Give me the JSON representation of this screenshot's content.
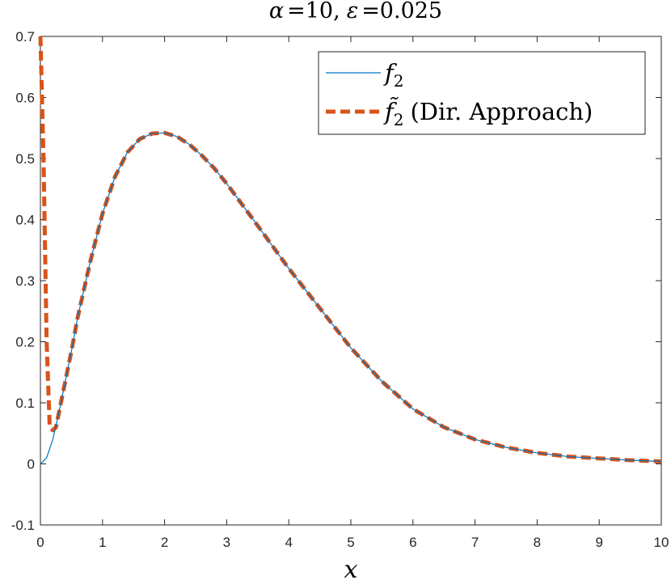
{
  "chart_data": {
    "type": "line",
    "title": "α =10, ε =0.025",
    "title_parts": {
      "alpha": "α",
      "alpha_value": "=10,",
      "eps": "ε",
      "eps_value": "=0.025"
    },
    "xlabel": "x",
    "ylabel": "",
    "xlim": [
      0,
      10
    ],
    "ylim": [
      -0.1,
      0.7
    ],
    "x_ticks": [
      0,
      1,
      2,
      3,
      4,
      5,
      6,
      7,
      8,
      9,
      10
    ],
    "x_tick_labels": [
      "0",
      "1",
      "2",
      "3",
      "4",
      "5",
      "6",
      "7",
      "8",
      "9",
      "10"
    ],
    "y_ticks": [
      -0.1,
      0,
      0.1,
      0.2,
      0.3,
      0.4,
      0.5,
      0.6,
      0.7
    ],
    "y_tick_labels": [
      "-0.1",
      "0",
      "0.1",
      "0.2",
      "0.3",
      "0.4",
      "0.5",
      "0.6",
      "0.7"
    ],
    "grid": false,
    "legend_position": "top-right",
    "series": [
      {
        "name": "f2",
        "legend_base": "f",
        "legend_sub": "2",
        "color": "#0072BD",
        "style": "solid",
        "x": [
          0,
          0.1,
          0.2,
          0.3,
          0.4,
          0.5,
          0.6,
          0.8,
          1.0,
          1.2,
          1.4,
          1.6,
          1.8,
          2.0,
          2.2,
          2.4,
          2.6,
          2.8,
          3.0,
          3.5,
          4.0,
          4.5,
          5.0,
          5.5,
          6.0,
          6.5,
          7.0,
          7.5,
          8.0,
          8.5,
          9.0,
          9.5,
          10.0
        ],
        "y": [
          0,
          0.01,
          0.04,
          0.085,
          0.135,
          0.185,
          0.24,
          0.33,
          0.41,
          0.47,
          0.51,
          0.532,
          0.541,
          0.542,
          0.536,
          0.523,
          0.505,
          0.484,
          0.459,
          0.39,
          0.32,
          0.255,
          0.19,
          0.135,
          0.09,
          0.06,
          0.04,
          0.027,
          0.018,
          0.012,
          0.009,
          0.006,
          0.004
        ]
      },
      {
        "name": "f̃2 (Dir. Approach)",
        "legend_base": "f̃",
        "legend_sub": "2",
        "legend_text": "(Dir. Approach)",
        "color": "#D95319",
        "style": "dashed",
        "x": [
          0,
          0.05,
          0.1,
          0.15,
          0.2,
          0.25,
          0.3,
          0.4,
          0.5,
          0.6,
          0.8,
          1.0,
          1.2,
          1.4,
          1.6,
          1.8,
          2.0,
          2.2,
          2.4,
          2.6,
          2.8,
          3.0,
          3.5,
          4.0,
          4.5,
          5.0,
          5.5,
          6.0,
          6.5,
          7.0,
          7.5,
          8.0,
          8.5,
          9.0,
          9.5,
          10.0
        ],
        "y": [
          0.7,
          0.5,
          0.2,
          0.06,
          0.055,
          0.06,
          0.085,
          0.135,
          0.185,
          0.24,
          0.33,
          0.41,
          0.47,
          0.51,
          0.532,
          0.541,
          0.542,
          0.536,
          0.523,
          0.505,
          0.484,
          0.459,
          0.39,
          0.32,
          0.255,
          0.19,
          0.135,
          0.09,
          0.06,
          0.04,
          0.027,
          0.018,
          0.012,
          0.009,
          0.006,
          0.004
        ]
      }
    ]
  }
}
